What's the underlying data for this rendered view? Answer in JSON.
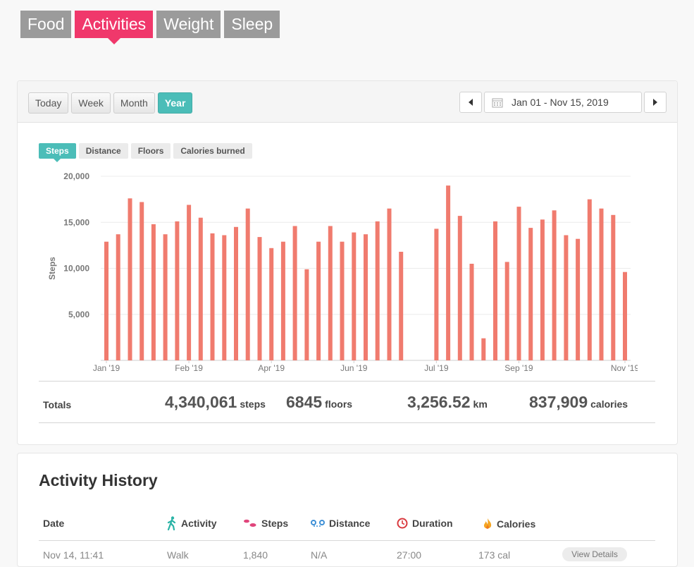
{
  "top_tabs": [
    {
      "label": "Food",
      "active": false
    },
    {
      "label": "Activities",
      "active": true
    },
    {
      "label": "Weight",
      "active": false
    },
    {
      "label": "Sleep",
      "active": false
    }
  ],
  "period_buttons": [
    {
      "label": "Today",
      "active": false
    },
    {
      "label": "Week",
      "active": false
    },
    {
      "label": "Month",
      "active": false
    },
    {
      "label": "Year",
      "active": true
    }
  ],
  "date_range": "Jan 01 - Nov 15, 2019",
  "metric_tabs": [
    {
      "label": "Steps",
      "active": true
    },
    {
      "label": "Distance",
      "active": false
    },
    {
      "label": "Floors",
      "active": false
    },
    {
      "label": "Calories burned",
      "active": false
    }
  ],
  "colors": {
    "bar": "#f07b6e",
    "accent": "#4bbdb8",
    "tab_active": "#f0386b",
    "tab": "#9b9b9b"
  },
  "chart_data": {
    "type": "bar",
    "ylabel": "Steps",
    "ylim": [
      0,
      20000
    ],
    "yticks": [
      5000,
      10000,
      15000,
      20000
    ],
    "ytick_labels": [
      "5,000",
      "10,000",
      "15,000",
      "20,000"
    ],
    "x_tick_labels": [
      {
        "label": "Jan '19",
        "at_index": 0
      },
      {
        "label": "Feb '19",
        "at_index": 7
      },
      {
        "label": "Apr '19",
        "at_index": 14
      },
      {
        "label": "Jun '19",
        "at_index": 21
      },
      {
        "label": "Jul '19",
        "at_index": 28
      },
      {
        "label": "Sep '19",
        "at_index": 35
      },
      {
        "label": "Nov '19",
        "at_index": 44
      }
    ],
    "values": [
      12900,
      13700,
      17600,
      17200,
      14800,
      13700,
      15100,
      16900,
      15500,
      13800,
      13600,
      14500,
      16500,
      13400,
      12200,
      12900,
      14600,
      9900,
      12900,
      14600,
      12900,
      13900,
      13700,
      15100,
      16500,
      11800,
      0,
      0,
      14300,
      19000,
      15700,
      10500,
      2400,
      15100,
      10700,
      16700,
      14400,
      15300,
      16300,
      13600,
      13200,
      17500,
      16500,
      15800,
      9600
    ],
    "grid": true
  },
  "totals": {
    "label": "Totals",
    "steps": "4,340,061",
    "steps_unit": "steps",
    "floors": "6845",
    "floors_unit": "floors",
    "distance": "3,256.52",
    "distance_unit": "km",
    "calories": "837,909",
    "calories_unit": "calories"
  },
  "history": {
    "title": "Activity History",
    "columns": [
      "Date",
      "Activity",
      "Steps",
      "Distance",
      "Duration",
      "Calories"
    ],
    "peek_row": [
      "Nov 14, 11:41",
      "Walk",
      "1,840",
      "N/A",
      "27:00",
      "173 cal"
    ],
    "details_label": "View Details"
  }
}
